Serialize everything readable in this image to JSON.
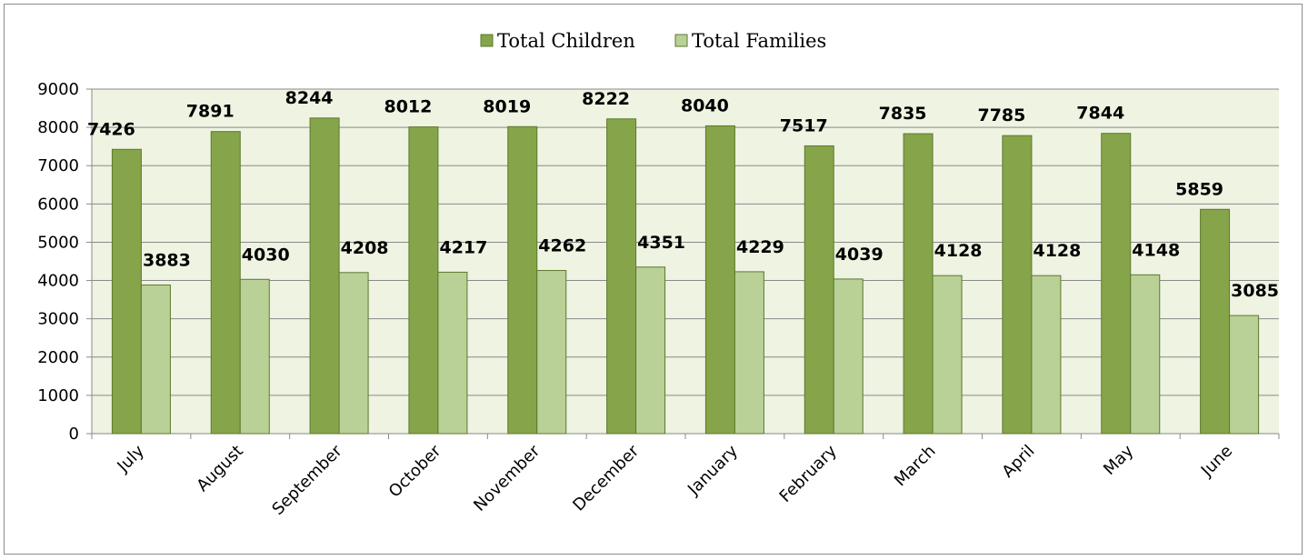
{
  "chart_data": {
    "type": "bar",
    "categories": [
      "July",
      "August",
      "September",
      "October",
      "November",
      "December",
      "January",
      "February",
      "March",
      "April",
      "May",
      "June"
    ],
    "series": [
      {
        "name": "Total Children",
        "values": [
          7426,
          7891,
          8244,
          8012,
          8019,
          8222,
          8040,
          7517,
          7835,
          7785,
          7844,
          5859
        ],
        "color": "#86a44a"
      },
      {
        "name": "Total Families",
        "values": [
          3883,
          4030,
          4208,
          4217,
          4262,
          4351,
          4229,
          4039,
          4128,
          4128,
          4148,
          3085
        ],
        "color": "#b9d097"
      }
    ],
    "ylim": [
      0,
      9000
    ],
    "yticks": [
      0,
      1000,
      2000,
      3000,
      4000,
      5000,
      6000,
      7000,
      8000,
      9000
    ],
    "grid": true,
    "legend": "top-center",
    "plot_background": "#eef3e2",
    "bar_outline": "#5c7a2c",
    "data_labels": true
  }
}
